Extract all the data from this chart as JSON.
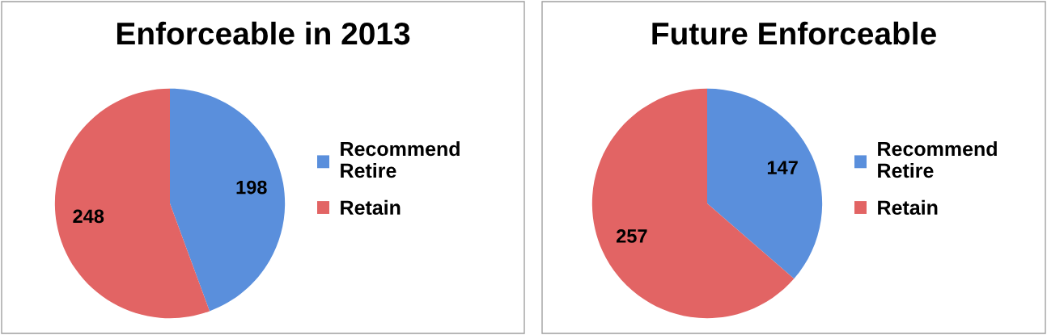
{
  "chart_data": [
    {
      "type": "pie",
      "title": "Enforceable in 2013",
      "categories": [
        "Recommend Retire",
        "Retain"
      ],
      "values": [
        198,
        248
      ],
      "colors": [
        "#5a8fdc",
        "#e26464"
      ],
      "data_labels": true,
      "legend": "right"
    },
    {
      "type": "pie",
      "title": "Future Enforceable",
      "categories": [
        "Recommend Retire",
        "Retain"
      ],
      "values": [
        147,
        257
      ],
      "colors": [
        "#5a8fdc",
        "#e26464"
      ],
      "data_labels": true,
      "legend": "right"
    }
  ]
}
